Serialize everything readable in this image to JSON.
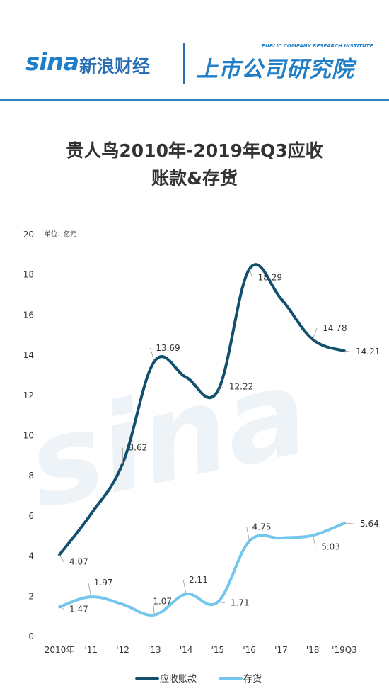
{
  "header": {
    "brand_logo": "sina",
    "brand_cn": "新浪财经",
    "institute_cn": "上市公司研究院",
    "institute_en": "PUBLIC COMPANY RESEARCH INSTITUTE"
  },
  "colors": {
    "receivables": "#12506e",
    "inventory": "#74c7ec",
    "accent": "#2f82c4"
  },
  "chart_data": {
    "type": "line",
    "title_line1": "贵人鸟2010年-2019年Q3应收",
    "title_line2": "账款&存货",
    "unit_label": "单位：亿元",
    "categories": [
      "2010年",
      "'11",
      "'12",
      "'13",
      "'14",
      "'15",
      "'16",
      "'17",
      "'18",
      "'19Q3"
    ],
    "ylim": [
      0,
      20
    ],
    "yticks": [
      0,
      2,
      4,
      6,
      8,
      10,
      12,
      14,
      16,
      18,
      20
    ],
    "grid": false,
    "legend_position": "bottom",
    "series": [
      {
        "name": "应收账款",
        "values": [
          4.07,
          6.1,
          8.62,
          13.69,
          12.9,
          12.22,
          18.29,
          16.8,
          14.78,
          14.21
        ],
        "labels": [
          "4.07",
          "",
          "8.62",
          "13.69",
          "",
          "12.22",
          "18.29",
          "",
          "14.78",
          "14.21"
        ]
      },
      {
        "name": "存货",
        "values": [
          1.47,
          1.97,
          1.6,
          1.07,
          2.11,
          1.71,
          4.75,
          4.9,
          5.03,
          5.64
        ],
        "labels": [
          "1.47",
          "1.97",
          "",
          "1.07",
          "2.11",
          "1.71",
          "4.75",
          "",
          "5.03",
          "5.64"
        ]
      }
    ]
  }
}
